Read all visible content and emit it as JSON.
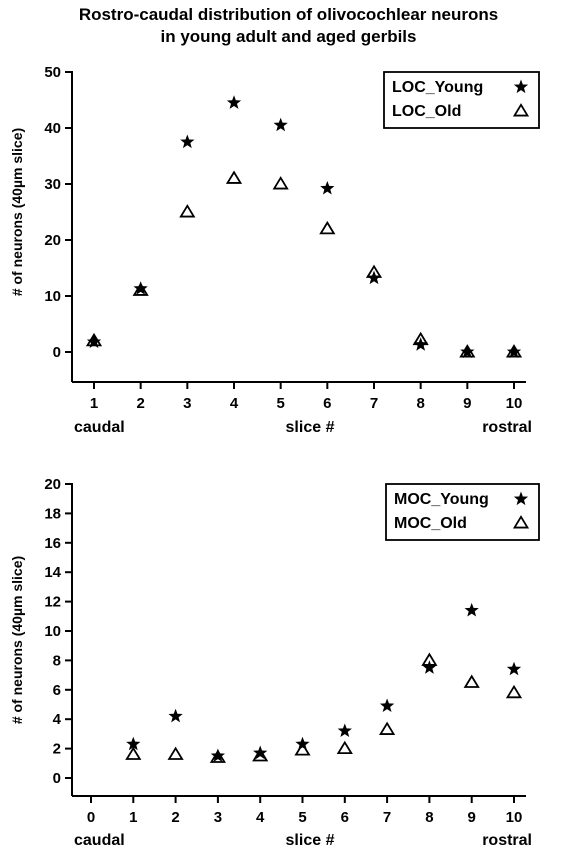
{
  "title": {
    "line1": "Rostro-caudal distribution of olivocochlear neurons",
    "line2": "in young adult and aged gerbils"
  },
  "chart_data": [
    {
      "type": "scatter",
      "ylabel": "# of neurons (40µm slice)",
      "xlabel": "slice #",
      "x_left_label": "caudal",
      "x_right_label": "rostral",
      "xlim": [
        1,
        10
      ],
      "ylim": [
        0,
        50
      ],
      "x_ticks": [
        1,
        2,
        3,
        4,
        5,
        6,
        7,
        8,
        9,
        10
      ],
      "y_ticks": [
        0,
        10,
        20,
        30,
        40,
        50
      ],
      "legend_position": "top-right",
      "series": [
        {
          "name": "LOC_Young",
          "marker": "star",
          "x": [
            1,
            2,
            3,
            4,
            5,
            6,
            7,
            8,
            9,
            10
          ],
          "y": [
            1.8,
            11.3,
            37.5,
            44.5,
            40.5,
            29.2,
            13.2,
            1.3,
            0,
            0
          ]
        },
        {
          "name": "LOC_Old",
          "marker": "triangle",
          "x": [
            1,
            2,
            3,
            4,
            5,
            6,
            7,
            8,
            9,
            10
          ],
          "y": [
            2.0,
            11.0,
            25.0,
            31.0,
            30.0,
            22.0,
            14.2,
            2.2,
            0,
            0
          ]
        }
      ]
    },
    {
      "type": "scatter",
      "ylabel": "# of neurons (40µm slice)",
      "xlabel": "slice #",
      "x_left_label": "caudal",
      "x_right_label": "rostral",
      "xlim": [
        0,
        10
      ],
      "ylim": [
        0,
        20
      ],
      "x_ticks": [
        0,
        1,
        2,
        3,
        4,
        5,
        6,
        7,
        8,
        9,
        10
      ],
      "y_ticks": [
        0,
        2,
        4,
        6,
        8,
        10,
        12,
        14,
        16,
        18,
        20
      ],
      "legend_position": "top-right",
      "series": [
        {
          "name": "MOC_Young",
          "marker": "star",
          "x": [
            1,
            2,
            3,
            4,
            5,
            6,
            7,
            8,
            9,
            10
          ],
          "y": [
            2.3,
            4.2,
            1.5,
            1.7,
            2.3,
            3.2,
            4.9,
            7.5,
            11.4,
            7.4
          ]
        },
        {
          "name": "MOC_Old",
          "marker": "triangle",
          "x": [
            1,
            2,
            3,
            4,
            5,
            6,
            7,
            8,
            9,
            10
          ],
          "y": [
            1.6,
            1.6,
            1.4,
            1.5,
            1.9,
            2.0,
            3.3,
            8.0,
            6.5,
            5.8
          ]
        }
      ]
    }
  ]
}
